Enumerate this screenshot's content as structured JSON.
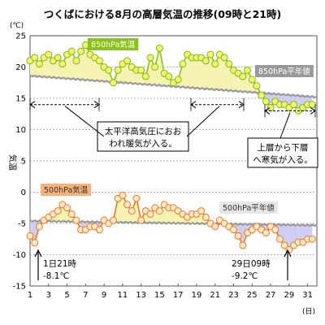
{
  "chart_data": {
    "type": "line",
    "title": "つくばにおける8月の高層気温の推移(09時と21時)",
    "ylabel": "気温",
    "yunit": "(℃)",
    "xunit": "(日)",
    "ylim": [
      -15,
      25
    ],
    "yticks": [
      -15,
      -10,
      -5,
      0,
      5,
      10,
      15,
      20,
      25
    ],
    "xlim": [
      1,
      32
    ],
    "xticks": [
      1,
      3,
      5,
      7,
      9,
      11,
      13,
      15,
      17,
      19,
      21,
      23,
      25,
      27,
      29,
      31
    ],
    "grid": true,
    "series": [
      {
        "name": "850hPa気温",
        "color": "#8cc21e",
        "x": [
          1,
          1.5,
          2,
          2.5,
          3,
          3.5,
          4,
          4.5,
          5,
          5.5,
          6,
          6.5,
          7,
          7.5,
          8,
          8.5,
          9,
          9.5,
          10,
          10.5,
          11,
          11.5,
          12,
          12.5,
          13,
          13.5,
          14,
          14.5,
          15,
          15.5,
          16,
          16.5,
          17,
          17.5,
          18,
          18.5,
          19,
          19.5,
          20,
          20.5,
          21,
          21.5,
          22,
          22.5,
          23,
          23.5,
          24,
          24.5,
          25,
          25.5,
          26,
          26.5,
          27,
          27.5,
          28,
          28.5,
          29,
          29.5,
          30,
          30.5,
          31,
          31.5
        ],
        "values": [
          21,
          21.5,
          20.5,
          21.5,
          22,
          21,
          21.5,
          20.5,
          22,
          22.5,
          21,
          22.5,
          23.5,
          22,
          21.5,
          21,
          20,
          19.5,
          17.5,
          19.5,
          20.5,
          21,
          20,
          19.5,
          19.5,
          18.5,
          21.5,
          20,
          23,
          19,
          18.5,
          17.5,
          18,
          20.5,
          22,
          21.5,
          21.5,
          21.5,
          21,
          22,
          20.5,
          22,
          21.5,
          20.5,
          19.5,
          19,
          18.5,
          19.5,
          18,
          17,
          15.5,
          14.5,
          13.5,
          14.5,
          14,
          14,
          13.5,
          14,
          13,
          13.5,
          14,
          14
        ]
      },
      {
        "name": "850hPa平年値",
        "color": "#999999",
        "x": [
          1,
          32
        ],
        "values": [
          18.6,
          15.2
        ]
      },
      {
        "name": "500hPa気温",
        "color": "#ee7722",
        "x": [
          1,
          1.5,
          2,
          2.5,
          3,
          3.5,
          4,
          4.5,
          5,
          5.5,
          6,
          6.5,
          7,
          7.5,
          8,
          8.5,
          9,
          9.5,
          10,
          10.5,
          11,
          11.5,
          12,
          12.5,
          13,
          13.5,
          14,
          14.5,
          15,
          15.5,
          16,
          16.5,
          17,
          17.5,
          18,
          18.5,
          19,
          19.5,
          20,
          20.5,
          21,
          21.5,
          22,
          22.5,
          23,
          23.5,
          24,
          24.5,
          25,
          25.5,
          26,
          26.5,
          27,
          27.5,
          28,
          28.5,
          29,
          29.5,
          30,
          30.5,
          31,
          31.5
        ],
        "values": [
          -7,
          -8.1,
          -5.5,
          -4.5,
          -4,
          -3.5,
          -3,
          -2,
          -2.5,
          -3.5,
          -4.5,
          -6,
          -6,
          -5.5,
          -5.5,
          -6,
          -4.5,
          -5,
          -4.5,
          -1,
          -0.5,
          -2,
          -3,
          -1,
          -4.5,
          -3,
          -3.5,
          -2.5,
          -3,
          -2,
          -2.5,
          -2.5,
          -3,
          -3.5,
          -4,
          -3.5,
          -3.5,
          -3,
          -4,
          -5,
          -5.5,
          -4.5,
          -5,
          -5.5,
          -6,
          -7,
          -8.5,
          -6.5,
          -6,
          -5.5,
          -6,
          -6.5,
          -5.5,
          -6,
          -7.5,
          -8.5,
          -9.2,
          -8.5,
          -8,
          -8,
          -7.5,
          -7.5
        ]
      },
      {
        "name": "500hPa平年値",
        "color": "#999999",
        "x": [
          1,
          32
        ],
        "values": [
          -4.6,
          -5.3
        ]
      }
    ],
    "annotations": [
      {
        "id": "pacific",
        "lines": [
          "太平洋高気圧におお",
          "われ暖気が入る。"
        ]
      },
      {
        "id": "cold",
        "lines": [
          "上層から下層",
          "へ寒気が入る。"
        ]
      },
      {
        "id": "min1",
        "lines": [
          "1日21時",
          "-8.1℃"
        ]
      },
      {
        "id": "min29",
        "lines": [
          "29日09時",
          "-9.2℃"
        ]
      }
    ]
  }
}
